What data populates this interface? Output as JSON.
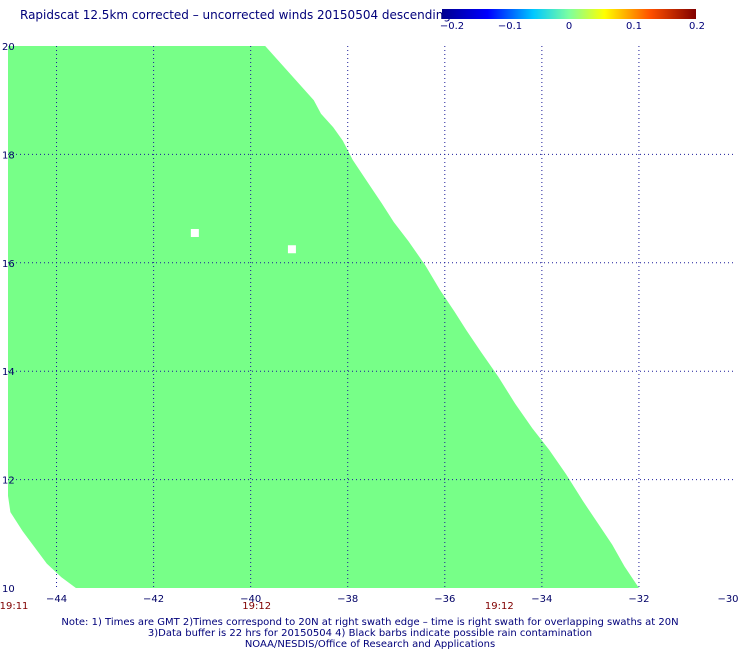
{
  "title": "Rapidscat 12.5km corrected – uncorrected winds 20150504 descending",
  "colorbar": {
    "labels": [
      "−0.2",
      "−0.1",
      "0",
      "0.1",
      "0.2"
    ],
    "values": [
      -0.2,
      -0.1,
      0,
      0.1,
      0.2
    ],
    "colors": [
      "#00008f",
      "#0000ff",
      "#00c8ff",
      "#7cffa0",
      "#ffff00",
      "#ff5000",
      "#800000"
    ]
  },
  "map": {
    "lon_range": [
      -45,
      -30
    ],
    "lat_range": [
      10,
      20
    ],
    "lon_ticks": [
      {
        "value": -44,
        "label": "−44"
      },
      {
        "value": -42,
        "label": "−42"
      },
      {
        "value": -40,
        "label": "−40"
      },
      {
        "value": -38,
        "label": "−38"
      },
      {
        "value": -36,
        "label": "−36"
      },
      {
        "value": -34,
        "label": "−34"
      },
      {
        "value": -32,
        "label": "−32"
      },
      {
        "value": -30,
        "label": "−30"
      }
    ],
    "lat_ticks": [
      {
        "value": 10,
        "label": "10"
      },
      {
        "value": 12,
        "label": "12"
      },
      {
        "value": 14,
        "label": "14"
      },
      {
        "value": 16,
        "label": "16"
      },
      {
        "value": 18,
        "label": "18"
      },
      {
        "value": 20,
        "label": "20"
      }
    ],
    "swath_color": "#77ff88",
    "swath_edge": [
      {
        "lat": 20.0,
        "lon": -39.7
      },
      {
        "lat": 19.75,
        "lon": -39.45
      },
      {
        "lat": 19.5,
        "lon": -39.2
      },
      {
        "lat": 19.25,
        "lon": -38.95
      },
      {
        "lat": 19.0,
        "lon": -38.7
      },
      {
        "lat": 18.75,
        "lon": -38.55
      },
      {
        "lat": 18.5,
        "lon": -38.3
      },
      {
        "lat": 18.25,
        "lon": -38.1
      },
      {
        "lat": 17.9,
        "lon": -37.9
      },
      {
        "lat": 17.5,
        "lon": -37.6
      },
      {
        "lat": 17.1,
        "lon": -37.3
      },
      {
        "lat": 16.75,
        "lon": -37.05
      },
      {
        "lat": 16.4,
        "lon": -36.75
      },
      {
        "lat": 15.95,
        "lon": -36.4
      },
      {
        "lat": 15.5,
        "lon": -36.1
      },
      {
        "lat": 15.1,
        "lon": -35.8
      },
      {
        "lat": 14.75,
        "lon": -35.55
      },
      {
        "lat": 14.35,
        "lon": -35.25
      },
      {
        "lat": 13.9,
        "lon": -34.9
      },
      {
        "lat": 13.4,
        "lon": -34.55
      },
      {
        "lat": 12.95,
        "lon": -34.2
      },
      {
        "lat": 12.55,
        "lon": -33.85
      },
      {
        "lat": 12.1,
        "lon": -33.5
      },
      {
        "lat": 11.6,
        "lon": -33.15
      },
      {
        "lat": 11.2,
        "lon": -32.85
      },
      {
        "lat": 10.8,
        "lon": -32.55
      },
      {
        "lat": 10.4,
        "lon": -32.3
      },
      {
        "lat": 10.0,
        "lon": -32.0
      },
      {
        "lat": 10.0,
        "lon": -43.6
      },
      {
        "lat": 10.2,
        "lon": -43.9
      },
      {
        "lat": 10.45,
        "lon": -44.2
      },
      {
        "lat": 10.75,
        "lon": -44.45
      },
      {
        "lat": 11.05,
        "lon": -44.7
      },
      {
        "lat": 11.4,
        "lon": -44.95
      },
      {
        "lat": 11.7,
        "lon": -45.0
      },
      {
        "lat": 20.0,
        "lon": -45.0
      }
    ],
    "gaps": [
      {
        "lat": 16.55,
        "lon": -41.15
      },
      {
        "lat": 16.25,
        "lon": -39.15
      }
    ],
    "times": [
      {
        "lon": -45,
        "label": "19:11"
      },
      {
        "lon": -40,
        "label": "19:12"
      },
      {
        "lon": -35,
        "label": "19:12"
      }
    ]
  },
  "notes": [
    "Note: 1) Times are GMT 2)Times correspond to 20N at right swath edge – time is right swath for overlapping swaths at 20N",
    "3)Data buffer is 22 hrs for 20150504 4) Black barbs indicate possible rain contamination",
    "NOAA/NESDIS/Office of Research and Applications"
  ]
}
